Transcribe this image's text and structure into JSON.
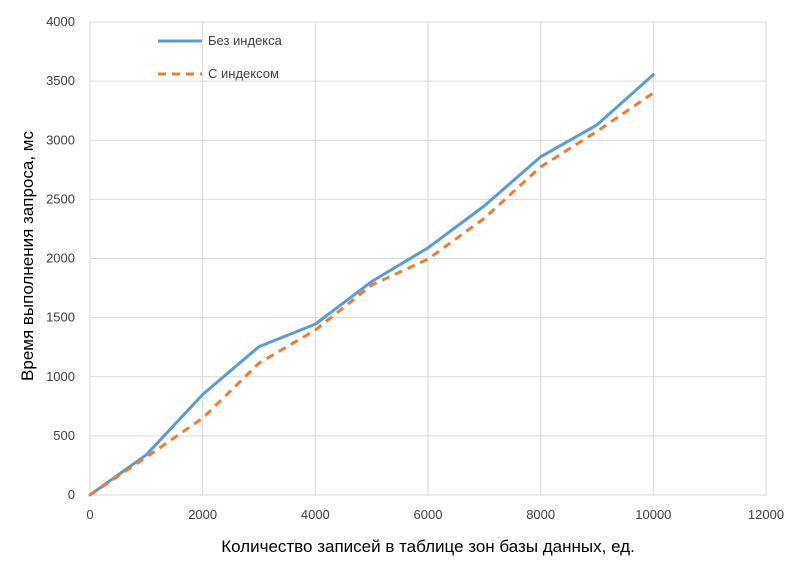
{
  "chart_data": {
    "type": "line",
    "title": "",
    "xlabel": "Количество записей в таблице зон базы данных, ед.",
    "ylabel": "Время выполнения запроса, мс",
    "xlim": [
      0,
      12000
    ],
    "ylim": [
      0,
      4000
    ],
    "x_ticks": [
      0,
      2000,
      4000,
      6000,
      8000,
      10000,
      12000
    ],
    "y_ticks": [
      0,
      500,
      1000,
      1500,
      2000,
      2500,
      3000,
      3500,
      4000
    ],
    "grid": "vertical-and-horizontal",
    "legend_position": "top-left",
    "x": [
      0,
      1000,
      2000,
      3000,
      4000,
      5000,
      6000,
      7000,
      8000,
      9000,
      10000
    ],
    "series": [
      {
        "name": "Без индекса",
        "style": "solid",
        "color": "#5B9BD5",
        "values": [
          0,
          340,
          850,
          1255,
          1445,
          1805,
          2090,
          2445,
          2860,
          3130,
          3555
        ]
      },
      {
        "name": "С индексом",
        "style": "dashed",
        "color": "#ED7D31",
        "values": [
          0,
          320,
          650,
          1115,
          1395,
          1775,
          1995,
          2340,
          2775,
          3075,
          3400
        ]
      }
    ]
  }
}
